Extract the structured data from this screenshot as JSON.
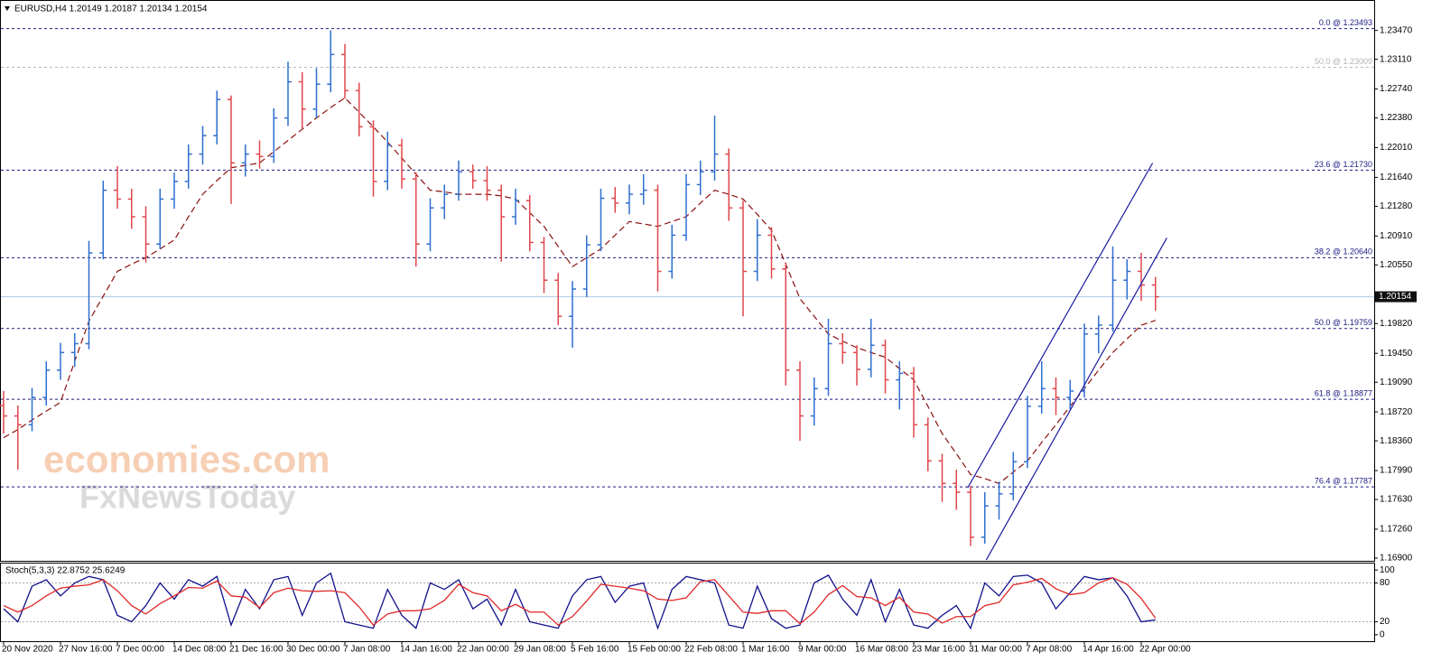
{
  "chart_data": [
    {
      "type": "ohlc",
      "title": "EURUSD,H4  1.20149 1.20187 1.20134 1.20154",
      "categories": [
        "20 Nov 2020",
        null,
        null,
        null,
        "27 Nov 16:00",
        null,
        null,
        null,
        "7 Dec 00:00",
        null,
        null,
        null,
        "14 Dec 08:00",
        null,
        null,
        null,
        "21 Dec 16:00",
        null,
        null,
        null,
        "30 Dec 00:00",
        null,
        null,
        null,
        "7 Jan 08:00",
        null,
        null,
        null,
        "14 Jan 16:00",
        null,
        null,
        null,
        "22 Jan 00:00",
        null,
        null,
        null,
        "29 Jan 08:00",
        null,
        null,
        null,
        "5 Feb 16:00",
        null,
        null,
        null,
        "15 Feb 00:00",
        null,
        null,
        null,
        "22 Feb 08:00",
        null,
        null,
        null,
        "1 Mar 16:00",
        null,
        null,
        null,
        "9 Mar 00:00",
        null,
        null,
        null,
        "16 Mar 08:00",
        null,
        null,
        null,
        "23 Mar 16:00",
        null,
        null,
        null,
        "31 Mar 00:00",
        null,
        null,
        null,
        "7 Apr 08:00",
        null,
        null,
        null,
        "14 Apr 16:00",
        null,
        null,
        null,
        "22 Apr 00:00",
        null
      ],
      "open": [
        1.188,
        1.1867,
        1.1856,
        1.189,
        1.1924,
        1.1946,
        1.1957,
        1.207,
        1.2148,
        1.2137,
        1.2115,
        1.2081,
        1.2137,
        1.2159,
        1.2193,
        1.2216,
        1.2261,
        1.2182,
        1.2193,
        1.219,
        1.2238,
        1.2283,
        1.2249,
        1.228,
        1.2317,
        1.2272,
        1.2227,
        1.2159,
        1.2204,
        1.2162,
        1.2081,
        1.2126,
        1.2143,
        1.2171,
        1.216,
        1.2148,
        1.2115,
        1.2135,
        1.2083,
        1.2036,
        1.1991,
        1.2025,
        1.208,
        1.2138,
        1.2132,
        1.2143,
        1.2148,
        1.2047,
        1.2092,
        1.2155,
        1.2171,
        1.2193,
        1.2126,
        1.2047,
        1.2092,
        1.205,
        1.1924,
        1.1867,
        1.1901,
        1.1957,
        1.1946,
        1.1925,
        1.1955,
        1.1912,
        1.192,
        1.1856,
        1.1811,
        1.1783,
        1.1772,
        1.1716,
        1.1755,
        1.177,
        1.181,
        1.1879,
        1.1901,
        1.189,
        1.1898,
        1.1969,
        1.198,
        1.2036,
        1.2047,
        1.203
      ],
      "high": [
        1.1898,
        1.188,
        1.1902,
        1.1935,
        1.1958,
        1.197,
        1.2085,
        1.216,
        1.2178,
        1.215,
        1.2128,
        1.215,
        1.217,
        1.2205,
        1.2228,
        1.2272,
        1.2266,
        1.2205,
        1.221,
        1.225,
        1.2308,
        1.2295,
        1.23,
        1.2347,
        1.233,
        1.2282,
        1.2235,
        1.2221,
        1.2212,
        1.217,
        1.2138,
        1.2155,
        1.2185,
        1.218,
        1.2178,
        1.2155,
        1.215,
        1.2142,
        1.209,
        1.2045,
        1.2035,
        1.2092,
        1.215,
        1.2152,
        1.2155,
        1.2168,
        1.2155,
        1.2105,
        1.2168,
        1.2185,
        1.2241,
        1.22,
        1.2135,
        1.2112,
        1.2102,
        1.2058,
        1.1935,
        1.1915,
        1.1988,
        1.197,
        1.1955,
        1.1988,
        1.1962,
        1.1935,
        1.1928,
        1.1865,
        1.182,
        1.18,
        1.178,
        1.1772,
        1.1785,
        1.1822,
        1.1892,
        1.1935,
        1.1915,
        1.1912,
        1.1982,
        1.1992,
        1.2078,
        1.2062,
        1.207,
        1.204
      ],
      "low": [
        1.1845,
        1.18,
        1.1848,
        1.188,
        1.1912,
        1.1928,
        1.195,
        1.2062,
        1.2125,
        1.21,
        1.2058,
        1.2075,
        1.2125,
        1.215,
        1.218,
        1.2205,
        1.2131,
        1.2165,
        1.2175,
        1.2182,
        1.2228,
        1.2225,
        1.2238,
        1.227,
        1.2262,
        1.2215,
        1.214,
        1.2148,
        1.215,
        1.2053,
        1.2072,
        1.2112,
        1.2135,
        1.215,
        1.2135,
        1.2059,
        1.2105,
        1.2072,
        1.202,
        1.198,
        1.1952,
        1.2015,
        1.2072,
        1.212,
        1.2118,
        1.213,
        1.2022,
        1.2038,
        1.2085,
        1.2142,
        1.216,
        1.211,
        1.1991,
        1.2035,
        1.2038,
        1.1905,
        1.1836,
        1.1855,
        1.1892,
        1.1932,
        1.1905,
        1.1915,
        1.1895,
        1.1875,
        1.184,
        1.1798,
        1.176,
        1.175,
        1.1705,
        1.1708,
        1.1738,
        1.1762,
        1.1802,
        1.187,
        1.1868,
        1.1875,
        1.189,
        1.1945,
        1.1972,
        1.2012,
        1.201,
        1.1998
      ],
      "close": [
        1.1867,
        1.1856,
        1.189,
        1.1924,
        1.1946,
        1.1957,
        1.207,
        1.2148,
        1.2137,
        1.2115,
        1.2081,
        1.2137,
        1.2159,
        1.2193,
        1.2216,
        1.2261,
        1.2182,
        1.2193,
        1.219,
        1.2238,
        1.2283,
        1.2249,
        1.228,
        1.2317,
        1.2272,
        1.2227,
        1.2159,
        1.2204,
        1.2162,
        1.2081,
        1.2126,
        1.2143,
        1.2171,
        1.216,
        1.2148,
        1.2115,
        1.2135,
        1.2083,
        1.2036,
        1.1991,
        1.2025,
        1.208,
        1.2138,
        1.2132,
        1.2143,
        1.2148,
        1.2047,
        1.2092,
        1.2155,
        1.2171,
        1.2193,
        1.2126,
        1.2047,
        1.2092,
        1.205,
        1.1924,
        1.1867,
        1.1901,
        1.1957,
        1.1946,
        1.1925,
        1.1955,
        1.1912,
        1.192,
        1.1856,
        1.1811,
        1.1783,
        1.1772,
        1.1716,
        1.1755,
        1.177,
        1.181,
        1.1879,
        1.1901,
        1.189,
        1.1898,
        1.1969,
        1.198,
        1.2036,
        1.2047,
        1.203,
        1.20154
      ],
      "up_color": "#2f6fd0",
      "down_color": "#e0474c",
      "lines": [
        {
          "color": "#8b1010",
          "dash": true,
          "values": [
            1.184,
            1.185,
            1.1862,
            1.1873,
            1.1884,
            1.1935,
            1.1985,
            1.2016,
            1.2047,
            1.2056,
            1.2064,
            1.2075,
            1.2086,
            1.2115,
            1.2143,
            1.216,
            1.2176,
            1.2179,
            1.2182,
            1.2196,
            1.221,
            1.2224,
            1.2238,
            1.2251,
            1.2263,
            1.2245,
            1.2227,
            1.2208,
            1.2188,
            1.2168,
            1.2148,
            1.2146,
            1.2143,
            1.2143,
            1.2143,
            1.2141,
            1.2137,
            1.212,
            1.2103,
            1.2078,
            1.2053,
            1.2064,
            1.2075,
            1.2092,
            1.2109,
            1.2106,
            1.2103,
            1.2109,
            1.2115,
            1.2132,
            1.2148,
            1.2143,
            1.2137,
            1.2118,
            1.2098,
            1.2056,
            1.2013,
            1.1991,
            1.1969,
            1.196,
            1.1952,
            1.1946,
            1.194,
            1.1926,
            1.1912,
            1.1879,
            1.1845,
            1.182,
            1.1794,
            1.1789,
            1.1783,
            1.1797,
            1.1811,
            1.1834,
            1.1856,
            1.1879,
            1.1901,
            1.1924,
            1.1946,
            1.1963,
            1.198,
            1.1986
          ]
        }
      ],
      "trendlines": [
        {
          "color": "#1a1aa0",
          "x": [
            67.8,
            80.8
          ],
          "y": [
            1.17776,
            1.21819
          ]
        },
        {
          "color": "#1a1aa0",
          "x": [
            69.1,
            81.8
          ],
          "y": [
            1.16877,
            1.20887
          ]
        }
      ],
      "levels": [
        {
          "value": 1.23493,
          "label": "0.0 @ 1.23493",
          "color": "#1a1a80"
        },
        {
          "value": 1.23009,
          "label": "50.0 @ 1.23009",
          "color": "#b4b4b4"
        },
        {
          "value": 1.2173,
          "label": "23.6 @ 1.21730",
          "color": "#1a1a80"
        },
        {
          "value": 1.2064,
          "label": "38.2 @ 1.20640",
          "color": "#1a1a80"
        },
        {
          "value": 1.19759,
          "label": "50.0 @ 1.19759",
          "color": "#1a1a80"
        },
        {
          "value": 1.18877,
          "label": "61.8 @ 1.18877",
          "color": "#1a1a80"
        },
        {
          "value": 1.17787,
          "label": "76.4 @ 1.17787",
          "color": "#1a1a80"
        }
      ],
      "current_price": 1.20154,
      "current_color": "#a9c9e4",
      "ylim": [
        1.16855,
        1.23826
      ],
      "yticks": [
        {
          "value": 1.2347,
          "label": "1.23470"
        },
        {
          "value": 1.2311,
          "label": "1.23110"
        },
        {
          "value": 1.2274,
          "label": "1.22740"
        },
        {
          "value": 1.2238,
          "label": "1.22380"
        },
        {
          "value": 1.2201,
          "label": "1.22010"
        },
        {
          "value": 1.2164,
          "label": "1.21640"
        },
        {
          "value": 1.2128,
          "label": "1.21280"
        },
        {
          "value": 1.2091,
          "label": "1.20910"
        },
        {
          "value": 1.2055,
          "label": "1.20550"
        },
        {
          "value": 1.1982,
          "label": "1.19820"
        },
        {
          "value": 1.1945,
          "label": "1.19450"
        },
        {
          "value": 1.1909,
          "label": "1.19090"
        },
        {
          "value": 1.1872,
          "label": "1.18720"
        },
        {
          "value": 1.1836,
          "label": "1.18360"
        },
        {
          "value": 1.1799,
          "label": "1.17990"
        },
        {
          "value": 1.1763,
          "label": "1.17630"
        },
        {
          "value": 1.1726,
          "label": "1.17260"
        },
        {
          "value": 1.169,
          "label": "1.16900"
        }
      ]
    },
    {
      "type": "line",
      "title": "Stoch(5,3,3) 22.8752 25.6249",
      "series": [
        {
          "color": "#10108c",
          "values": [
            40,
            20,
            75,
            85,
            60,
            80,
            90,
            85,
            30,
            20,
            45,
            80,
            55,
            85,
            75,
            90,
            15,
            70,
            40,
            85,
            90,
            30,
            80,
            95,
            20,
            15,
            10,
            70,
            30,
            10,
            80,
            70,
            85,
            40,
            55,
            15,
            70,
            20,
            15,
            10,
            60,
            85,
            90,
            50,
            75,
            80,
            10,
            70,
            90,
            85,
            80,
            15,
            10,
            75,
            25,
            10,
            15,
            80,
            92,
            55,
            30,
            85,
            20,
            70,
            15,
            10,
            30,
            45,
            10,
            80,
            60,
            90,
            92,
            80,
            40,
            65,
            90,
            85,
            88,
            60,
            20,
            22.8752
          ]
        },
        {
          "color": "#e02828",
          "values": [
            45,
            35,
            45,
            60,
            72,
            75,
            77,
            85,
            68,
            45,
            32,
            48,
            60,
            73,
            72,
            83,
            60,
            58,
            42,
            65,
            72,
            68,
            67,
            68,
            65,
            43,
            15,
            32,
            37,
            37,
            40,
            53,
            78,
            65,
            60,
            37,
            47,
            35,
            35,
            15,
            28,
            52,
            78,
            75,
            72,
            68,
            55,
            53,
            57,
            82,
            85,
            60,
            35,
            33,
            37,
            37,
            17,
            35,
            62,
            76,
            59,
            57,
            45,
            58,
            35,
            32,
            18,
            28,
            28,
            45,
            50,
            77,
            81,
            87,
            71,
            62,
            65,
            80,
            88,
            78,
            56,
            25.6249
          ]
        }
      ],
      "levels": [
        80,
        20
      ],
      "ylim": [
        -10,
        110
      ],
      "yticks": [
        100,
        80,
        20,
        0
      ]
    }
  ],
  "watermark": {
    "brand": "economies.com",
    "sub": "FxNewsToday"
  }
}
